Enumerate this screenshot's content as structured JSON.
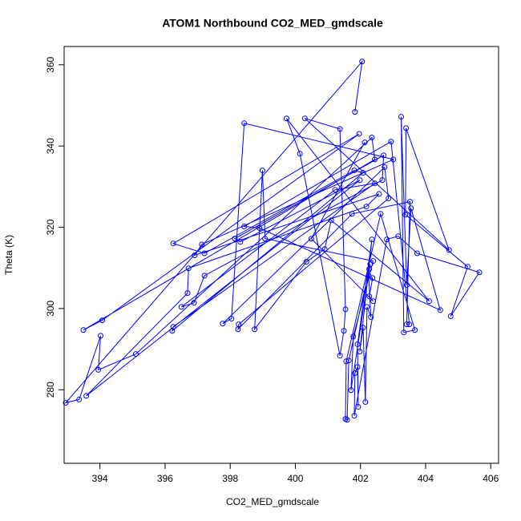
{
  "chart_data": {
    "type": "line",
    "marker": "circle",
    "color": "#0000ff",
    "title": "ATOM1 Northbound CO2_MED_gmdscale",
    "x_label": "CO2_MED_gmdscale",
    "y_label": "Theta (K)",
    "xlim": [
      392.9,
      406.24
    ],
    "ylim": [
      261.9,
      364.5
    ],
    "xticks": [
      394,
      396,
      398,
      400,
      402,
      404,
      406
    ],
    "yticks": [
      280,
      300,
      320,
      340,
      360
    ],
    "x": [
      401.83,
      402.05,
      392.95,
      393.36,
      394.02,
      393.95,
      395.1,
      402.35,
      402.44,
      393.49,
      394.07,
      401.96,
      396.25,
      397.21,
      401.81,
      402.08,
      396.22,
      396.25,
      402.44,
      401.22,
      396.5,
      396.89,
      397.21,
      402.67,
      402.71,
      398.14,
      398.31,
      401.98,
      393.58,
      396.69,
      396.72,
      402.18,
      402.57,
      396.91,
      397.13,
      403.01,
      398.43,
      398.04,
      397.77,
      402.74,
      402.86,
      398.26,
      398.24,
      401.74,
      403.52,
      403.42,
      403.5,
      402.94,
      398.43,
      398.9,
      404.45,
      403.55,
      403.42,
      403.25,
      403.33,
      403.67,
      402.62,
      401.56,
      401.54,
      401.59,
      401.64,
      402.27,
      402.3,
      401.71,
      401.78,
      402.39,
      399.07,
      398.99,
      398.75,
      400.34,
      400.9,
      401.1,
      404.11,
      399.73,
      400.14,
      401.37,
      401.49,
      401.54,
      401.37,
      400.29,
      404.72,
      403.4,
      403.38,
      405.29,
      404.77,
      405.65,
      403.74,
      403.16,
      402.81,
      401.81,
      401.83,
      401.91,
      401.93,
      401.91,
      402.35,
      401.98,
      402.08,
      402.15,
      402.2,
      402.32,
      402.25,
      402.37,
      402.27,
      402.39,
      400.49,
      402.13
    ],
    "values": [
      348.4,
      360.8,
      276.8,
      277.6,
      293.3,
      284.9,
      288.8,
      342.1,
      336.7,
      294.7,
      297.1,
      343.0,
      316.0,
      313.6,
      334.0,
      333.4,
      294.5,
      295.5,
      330.8,
      329.2,
      300.4,
      301.4,
      308.1,
      331.6,
      337.7,
      317.2,
      316.4,
      331.6,
      278.5,
      303.8,
      309.9,
      325.1,
      328.2,
      313.1,
      315.8,
      336.7,
      345.6,
      297.5,
      296.3,
      334.8,
      327.1,
      296.1,
      294.9,
      323.3,
      326.3,
      296.1,
      296.1,
      341.1,
      320.2,
      319.8,
      299.6,
      324.7,
      305.8,
      347.2,
      294.1,
      294.7,
      323.3,
      287.0,
      272.8,
      272.6,
      287.2,
      309.7,
      310.9,
      279.9,
      293.1,
      311.7,
      317.2,
      334.0,
      294.9,
      311.5,
      314.6,
      321.7,
      301.8,
      346.8,
      338.1,
      288.4,
      294.5,
      299.8,
      344.2,
      346.8,
      314.4,
      344.4,
      323.1,
      310.3,
      298.1,
      308.9,
      313.6,
      317.8,
      317.0,
      273.6,
      284.1,
      285.6,
      275.8,
      291.2,
      317.0,
      289.4,
      295.3,
      277.0,
      300.4,
      297.9,
      308.1,
      307.5,
      303.0,
      301.8,
      317.2,
      340.9
    ]
  }
}
